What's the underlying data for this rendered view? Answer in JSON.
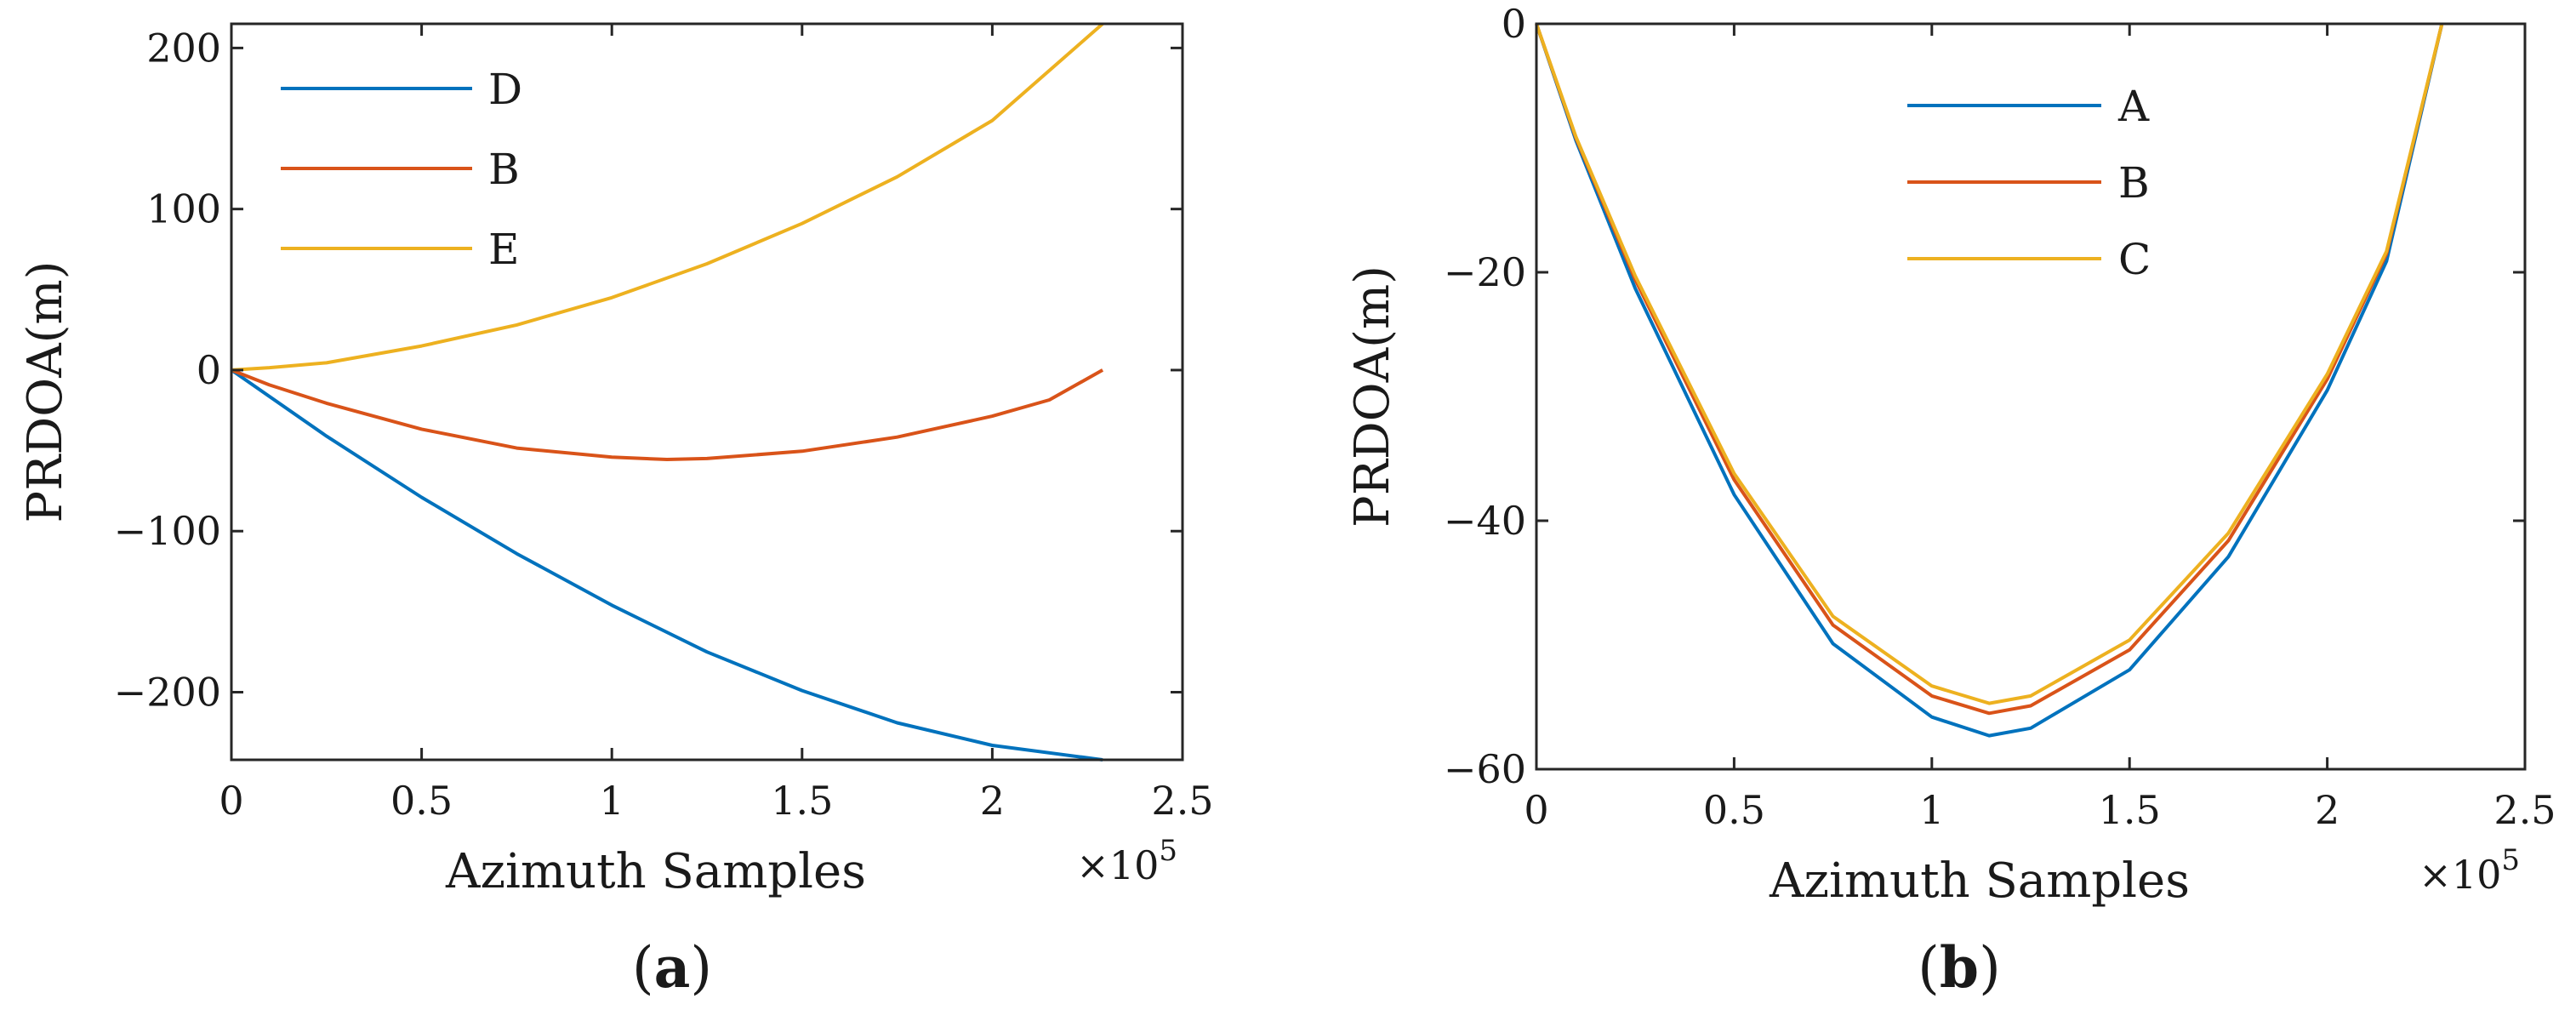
{
  "chart_data": [
    {
      "panel": "a",
      "type": "line",
      "caption": "(a)",
      "xlabel": "Azimuth Samples",
      "ylabel": "PRDOA(m)",
      "x_multiplier": "×10",
      "x_multiplier_exp": "5",
      "xlim": [
        0,
        2.5
      ],
      "ylim": [
        -242,
        215
      ],
      "xticks": [
        0,
        0.5,
        1,
        1.5,
        2,
        2.5
      ],
      "xtick_labels": [
        "0",
        "0.5",
        "1",
        "1.5",
        "2",
        "2.5"
      ],
      "yticks": [
        -200,
        -100,
        0,
        100,
        200
      ],
      "ytick_labels": [
        "−200",
        "−100",
        "0",
        "100",
        "200"
      ],
      "legend_location": "top-left",
      "series": [
        {
          "name": "D",
          "color": "#0072BD",
          "x": [
            0,
            0.25,
            0.5,
            0.75,
            1.0,
            1.25,
            1.5,
            1.75,
            2.0,
            2.29
          ],
          "y": [
            0,
            -41,
            -79,
            -114,
            -146,
            -175,
            -199,
            -219,
            -233,
            -242
          ]
        },
        {
          "name": "B",
          "color": "#D95319",
          "x": [
            0,
            0.1,
            0.25,
            0.5,
            0.75,
            1.0,
            1.145,
            1.25,
            1.5,
            1.75,
            2.0,
            2.15,
            2.29
          ],
          "y": [
            0,
            -9.2,
            -20.6,
            -36.7,
            -48.4,
            -54.1,
            -55.5,
            -54.9,
            -50.4,
            -41.6,
            -28.6,
            -18.5,
            0
          ]
        },
        {
          "name": "E",
          "color": "#EDB120",
          "x": [
            0,
            0.1,
            0.25,
            0.5,
            0.75,
            1.0,
            1.25,
            1.5,
            1.75,
            2.0,
            2.29
          ],
          "y": [
            0,
            1.5,
            4.5,
            15,
            28,
            45,
            66,
            91,
            120,
            155,
            215
          ]
        }
      ]
    },
    {
      "panel": "b",
      "type": "line",
      "caption": "(b)",
      "xlabel": "Azimuth Samples",
      "ylabel": "PRDOA(m)",
      "x_multiplier": "×10",
      "x_multiplier_exp": "5",
      "xlim": [
        0,
        2.5
      ],
      "ylim": [
        -60,
        0
      ],
      "xticks": [
        0,
        0.5,
        1,
        1.5,
        2,
        2.5
      ],
      "xtick_labels": [
        "0",
        "0.5",
        "1",
        "1.5",
        "2",
        "2.5"
      ],
      "yticks": [
        -60,
        -40,
        -20,
        0
      ],
      "ytick_labels": [
        "−60",
        "−40",
        "−20",
        "0"
      ],
      "legend_location": "top-center",
      "series": [
        {
          "name": "A",
          "color": "#0072BD",
          "x": [
            0,
            0.1,
            0.25,
            0.5,
            0.75,
            1.0,
            1.145,
            1.25,
            1.5,
            1.75,
            2.0,
            2.15,
            2.29
          ],
          "y": [
            0,
            -9.4,
            -21.3,
            -37.9,
            -49.9,
            -55.8,
            -57.3,
            -56.7,
            -52.0,
            -42.9,
            -29.5,
            -19.1,
            0
          ]
        },
        {
          "name": "B",
          "color": "#D95319",
          "x": [
            0,
            0.1,
            0.25,
            0.5,
            0.75,
            1.0,
            1.145,
            1.25,
            1.5,
            1.75,
            2.0,
            2.15,
            2.29
          ],
          "y": [
            0,
            -9.2,
            -20.6,
            -36.7,
            -48.4,
            -54.1,
            -55.5,
            -54.9,
            -50.4,
            -41.6,
            -28.6,
            -18.5,
            0
          ]
        },
        {
          "name": "C",
          "color": "#EDB120",
          "x": [
            0,
            0.1,
            0.25,
            0.5,
            0.75,
            1.0,
            1.145,
            1.25,
            1.5,
            1.75,
            2.0,
            2.15,
            2.29
          ],
          "y": [
            0,
            -9.1,
            -20.3,
            -36.2,
            -47.7,
            -53.3,
            -54.7,
            -54.1,
            -49.6,
            -41.0,
            -28.2,
            -18.3,
            0
          ]
        }
      ]
    }
  ]
}
